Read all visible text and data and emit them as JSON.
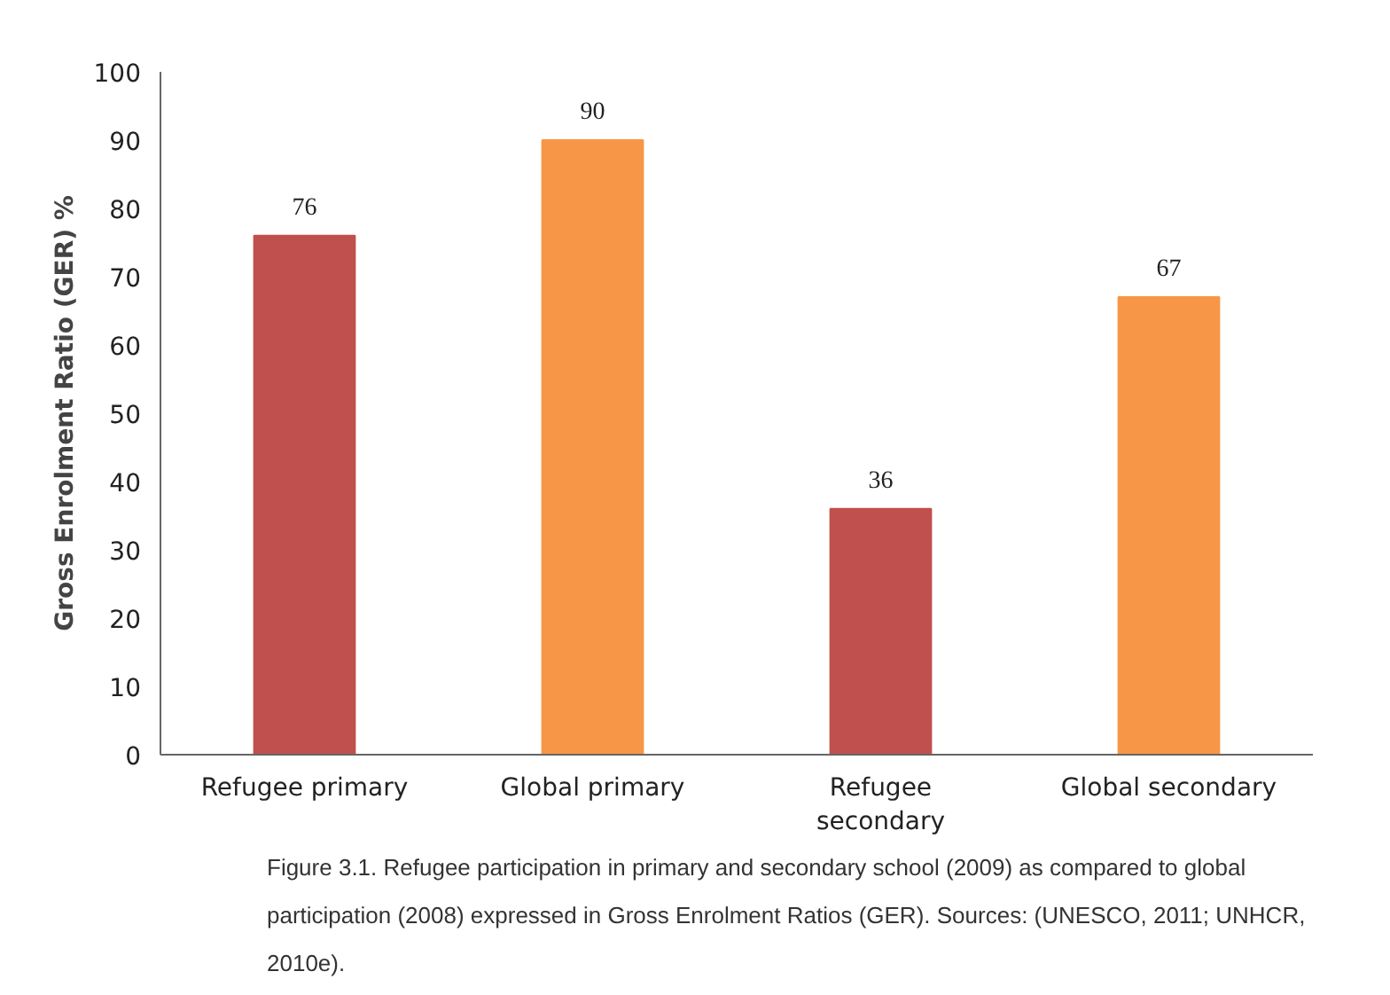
{
  "chart_data": {
    "type": "bar",
    "ylabel": "Gross Enrolment Ratio (GER) %",
    "categories": [
      "Refugee primary",
      "Global primary",
      "Refugee secondary",
      "Global secondary"
    ],
    "values": [
      76,
      90,
      36,
      67
    ],
    "colors": [
      "#c0504d",
      "#f79646",
      "#c0504d",
      "#f79646"
    ],
    "ylim": [
      0,
      100
    ],
    "yticks": [
      0,
      10,
      20,
      30,
      40,
      50,
      60,
      70,
      80,
      90,
      100
    ],
    "data_labels": true,
    "grid": false,
    "annotations": [
      "Figure 3.1. Refugee participation in primary and secondary school (2009) as compared to global participation (2008) expressed in Gross Enrolment Ratios (GER). Sources: (UNESCO, 2011; UNHCR, 2010e)."
    ]
  }
}
